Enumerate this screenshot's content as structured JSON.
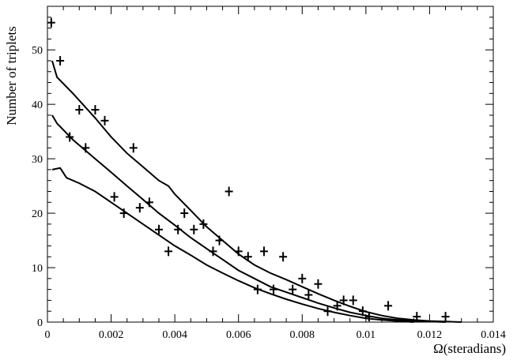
{
  "chart_data": {
    "type": "scatter",
    "title": "",
    "xlabel": "Ω(steradians)",
    "ylabel": "Number of triplets",
    "xlim": [
      0,
      0.014
    ],
    "ylim": [
      0,
      58
    ],
    "grid": false,
    "x_ticks": [
      0,
      0.002,
      0.004,
      0.006,
      0.008,
      0.01,
      0.012,
      0.014
    ],
    "x_tick_labels": [
      "0",
      "0.002",
      "0.004",
      "0.006",
      "0.008",
      "0.01",
      "0.012",
      "0.014"
    ],
    "y_ticks": [
      0,
      10,
      20,
      30,
      40,
      50
    ],
    "y_tick_labels": [
      "0",
      "10",
      "20",
      "30",
      "40",
      "50"
    ],
    "series": [
      {
        "marker": "cross",
        "points": [
          [
            0.00012,
            55
          ],
          [
            0.0004,
            48
          ],
          [
            0.0007,
            34
          ],
          [
            0.001,
            39
          ],
          [
            0.0012,
            32
          ],
          [
            0.0015,
            39
          ],
          [
            0.0018,
            37
          ],
          [
            0.0021,
            23
          ],
          [
            0.0024,
            20
          ],
          [
            0.0027,
            32
          ],
          [
            0.0029,
            21
          ],
          [
            0.0032,
            22
          ],
          [
            0.0035,
            17
          ],
          [
            0.0038,
            13
          ],
          [
            0.0041,
            17
          ],
          [
            0.0043,
            20
          ],
          [
            0.0046,
            17
          ],
          [
            0.0049,
            18
          ],
          [
            0.0052,
            13
          ],
          [
            0.0054,
            15
          ],
          [
            0.0057,
            24
          ],
          [
            0.006,
            13
          ],
          [
            0.0063,
            12
          ],
          [
            0.0066,
            6
          ],
          [
            0.0068,
            13
          ],
          [
            0.0071,
            6
          ],
          [
            0.0074,
            12
          ],
          [
            0.0077,
            6
          ],
          [
            0.008,
            8
          ],
          [
            0.0082,
            5
          ],
          [
            0.0085,
            7
          ],
          [
            0.0088,
            2
          ],
          [
            0.0091,
            3
          ],
          [
            0.0093,
            4
          ],
          [
            0.0096,
            4
          ],
          [
            0.0099,
            2
          ],
          [
            0.0101,
            1
          ],
          [
            0.0107,
            3
          ],
          [
            0.0116,
            1
          ],
          [
            0.0125,
            1
          ]
        ]
      },
      {
        "style": "line",
        "points": [
          [
            0.00015,
            48
          ],
          [
            0.0003,
            45
          ],
          [
            0.0008,
            42
          ],
          [
            0.0015,
            37.5
          ],
          [
            0.002,
            34
          ],
          [
            0.0025,
            31
          ],
          [
            0.003,
            28.5
          ],
          [
            0.0035,
            26
          ],
          [
            0.0038,
            25
          ],
          [
            0.004,
            23.5
          ],
          [
            0.0045,
            20.5
          ],
          [
            0.005,
            17.5
          ],
          [
            0.0055,
            15
          ],
          [
            0.006,
            12.5
          ],
          [
            0.0065,
            10.5
          ],
          [
            0.007,
            9
          ],
          [
            0.0075,
            7.8
          ],
          [
            0.008,
            6.5
          ],
          [
            0.0085,
            5.2
          ],
          [
            0.009,
            4
          ],
          [
            0.0095,
            2.9
          ],
          [
            0.01,
            1.9
          ],
          [
            0.0105,
            1.2
          ],
          [
            0.011,
            0.7
          ],
          [
            0.0115,
            0.4
          ],
          [
            0.012,
            0.2
          ],
          [
            0.0125,
            0.1
          ],
          [
            0.013,
            0
          ]
        ]
      },
      {
        "style": "line",
        "points": [
          [
            0.00015,
            38
          ],
          [
            0.0003,
            36.5
          ],
          [
            0.0008,
            33.5
          ],
          [
            0.0015,
            30
          ],
          [
            0.002,
            27.5
          ],
          [
            0.0025,
            25
          ],
          [
            0.003,
            22.5
          ],
          [
            0.0035,
            20
          ],
          [
            0.004,
            17.8
          ],
          [
            0.0045,
            15.5
          ],
          [
            0.005,
            13.5
          ],
          [
            0.0055,
            11.5
          ],
          [
            0.006,
            9.5
          ],
          [
            0.0065,
            8
          ],
          [
            0.007,
            6.5
          ],
          [
            0.0075,
            5.5
          ],
          [
            0.008,
            4.5
          ],
          [
            0.0085,
            3.5
          ],
          [
            0.009,
            2.6
          ],
          [
            0.0095,
            1.8
          ],
          [
            0.01,
            1.2
          ],
          [
            0.0105,
            0.7
          ],
          [
            0.011,
            0.4
          ],
          [
            0.0115,
            0.2
          ],
          [
            0.012,
            0.1
          ],
          [
            0.0125,
            0
          ]
        ]
      },
      {
        "style": "line",
        "points": [
          [
            0.00015,
            28
          ],
          [
            0.0004,
            28.3
          ],
          [
            0.0006,
            26.5
          ],
          [
            0.001,
            25.5
          ],
          [
            0.0015,
            24
          ],
          [
            0.002,
            22
          ],
          [
            0.0025,
            20
          ],
          [
            0.003,
            18
          ],
          [
            0.0035,
            16
          ],
          [
            0.004,
            14
          ],
          [
            0.0045,
            12.3
          ],
          [
            0.005,
            10.5
          ],
          [
            0.0055,
            9
          ],
          [
            0.006,
            7.6
          ],
          [
            0.0065,
            6.3
          ],
          [
            0.007,
            5.2
          ],
          [
            0.0075,
            4.2
          ],
          [
            0.008,
            3.3
          ],
          [
            0.0085,
            2.5
          ],
          [
            0.009,
            1.8
          ],
          [
            0.0095,
            1.2
          ],
          [
            0.01,
            0.7
          ],
          [
            0.0105,
            0.4
          ],
          [
            0.011,
            0.2
          ],
          [
            0.0115,
            0
          ]
        ]
      }
    ]
  }
}
